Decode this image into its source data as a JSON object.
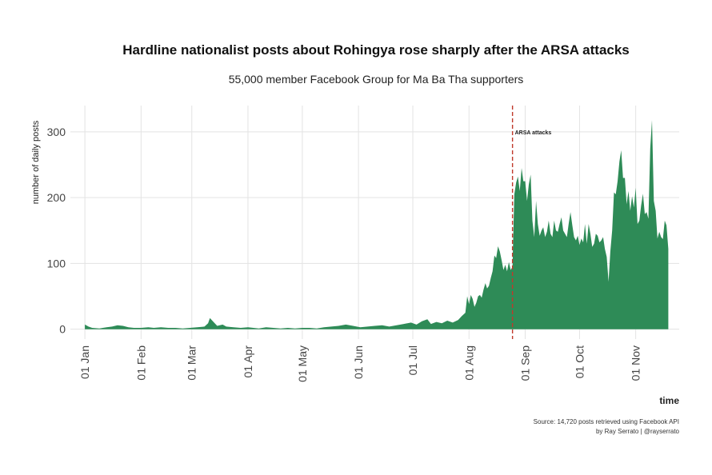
{
  "chart_data": {
    "type": "area",
    "title": "Hardline nationalist posts about Rohingya rose sharply after the ARSA attacks",
    "subtitle": "55,000 member Facebook Group for Ma Ba Tha supporters",
    "xlabel": "time",
    "ylabel": "number of daily posts",
    "ylim": [
      -15,
      340
    ],
    "y_ticks": [
      0,
      100,
      200,
      300
    ],
    "x_range_days": [
      -8,
      328
    ],
    "x_ticks": [
      {
        "label": "01 Jan",
        "day": 0
      },
      {
        "label": "01 Feb",
        "day": 31
      },
      {
        "label": "01 Mar",
        "day": 59
      },
      {
        "label": "01 Apr",
        "day": 90
      },
      {
        "label": "01 May",
        "day": 120
      },
      {
        "label": "01 Jun",
        "day": 151
      },
      {
        "label": "01 Jul",
        "day": 181
      },
      {
        "label": "01 Aug",
        "day": 212
      },
      {
        "label": "01 Sep",
        "day": 243
      },
      {
        "label": "01 Oct",
        "day": 273
      },
      {
        "label": "01 Nov",
        "day": 304
      }
    ],
    "grid": true,
    "fill_color": "#2e8b57",
    "annotation": {
      "label": "ARSA attacks",
      "day": 236,
      "color": "#c0392b"
    },
    "source": "Source: 14,720 posts retrieved using Facebook API",
    "credit": "by Ray Serrato | @rayserrato",
    "series": [
      {
        "name": "daily posts",
        "points": [
          [
            0,
            7
          ],
          [
            2,
            4
          ],
          [
            4,
            2
          ],
          [
            8,
            1
          ],
          [
            12,
            3
          ],
          [
            15,
            4
          ],
          [
            18,
            6
          ],
          [
            21,
            5
          ],
          [
            24,
            3
          ],
          [
            27,
            2
          ],
          [
            31,
            2
          ],
          [
            35,
            3
          ],
          [
            38,
            2
          ],
          [
            42,
            3
          ],
          [
            46,
            2
          ],
          [
            50,
            2
          ],
          [
            54,
            1
          ],
          [
            58,
            2
          ],
          [
            62,
            3
          ],
          [
            66,
            4
          ],
          [
            68,
            9
          ],
          [
            69,
            17
          ],
          [
            71,
            11
          ],
          [
            73,
            5
          ],
          [
            76,
            7
          ],
          [
            78,
            4
          ],
          [
            82,
            3
          ],
          [
            86,
            2
          ],
          [
            90,
            3
          ],
          [
            93,
            2
          ],
          [
            96,
            1
          ],
          [
            100,
            3
          ],
          [
            104,
            2
          ],
          [
            108,
            1
          ],
          [
            112,
            2
          ],
          [
            116,
            1
          ],
          [
            120,
            2
          ],
          [
            124,
            2
          ],
          [
            128,
            1
          ],
          [
            132,
            3
          ],
          [
            136,
            4
          ],
          [
            140,
            5
          ],
          [
            144,
            7
          ],
          [
            148,
            5
          ],
          [
            152,
            3
          ],
          [
            156,
            4
          ],
          [
            160,
            5
          ],
          [
            164,
            6
          ],
          [
            168,
            4
          ],
          [
            172,
            6
          ],
          [
            176,
            8
          ],
          [
            180,
            10
          ],
          [
            183,
            7
          ],
          [
            186,
            12
          ],
          [
            189,
            15
          ],
          [
            191,
            8
          ],
          [
            194,
            11
          ],
          [
            197,
            9
          ],
          [
            200,
            13
          ],
          [
            203,
            10
          ],
          [
            206,
            14
          ],
          [
            208,
            20
          ],
          [
            210,
            25
          ],
          [
            211,
            50
          ],
          [
            212,
            38
          ],
          [
            213,
            52
          ],
          [
            214,
            46
          ],
          [
            215,
            34
          ],
          [
            216,
            40
          ],
          [
            217,
            50
          ],
          [
            218,
            52
          ],
          [
            219,
            48
          ],
          [
            220,
            60
          ],
          [
            221,
            70
          ],
          [
            222,
            62
          ],
          [
            223,
            66
          ],
          [
            224,
            78
          ],
          [
            225,
            88
          ],
          [
            226,
            112
          ],
          [
            227,
            108
          ],
          [
            228,
            126
          ],
          [
            229,
            118
          ],
          [
            230,
            105
          ],
          [
            231,
            90
          ],
          [
            232,
            98
          ],
          [
            233,
            88
          ],
          [
            234,
            102
          ],
          [
            235,
            90
          ],
          [
            236,
            95
          ],
          [
            237,
            205
          ],
          [
            238,
            223
          ],
          [
            239,
            232
          ],
          [
            240,
            210
          ],
          [
            241,
            245
          ],
          [
            242,
            225
          ],
          [
            243,
            225
          ],
          [
            244,
            195
          ],
          [
            245,
            220
          ],
          [
            246,
            235
          ],
          [
            247,
            165
          ],
          [
            248,
            140
          ],
          [
            249,
            195
          ],
          [
            250,
            160
          ],
          [
            251,
            142
          ],
          [
            252,
            150
          ],
          [
            253,
            155
          ],
          [
            254,
            140
          ],
          [
            255,
            148
          ],
          [
            256,
            165
          ],
          [
            257,
            145
          ],
          [
            258,
            140
          ],
          [
            259,
            165
          ],
          [
            260,
            150
          ],
          [
            261,
            148
          ],
          [
            262,
            160
          ],
          [
            263,
            170
          ],
          [
            264,
            150
          ],
          [
            265,
            145
          ],
          [
            266,
            140
          ],
          [
            267,
            160
          ],
          [
            268,
            178
          ],
          [
            269,
            158
          ],
          [
            270,
            140
          ],
          [
            271,
            135
          ],
          [
            272,
            142
          ],
          [
            273,
            128
          ],
          [
            274,
            138
          ],
          [
            275,
            132
          ],
          [
            276,
            160
          ],
          [
            277,
            130
          ],
          [
            278,
            160
          ],
          [
            279,
            145
          ],
          [
            280,
            125
          ],
          [
            281,
            130
          ],
          [
            282,
            145
          ],
          [
            283,
            142
          ],
          [
            284,
            132
          ],
          [
            285,
            135
          ],
          [
            286,
            140
          ],
          [
            287,
            122
          ],
          [
            288,
            110
          ],
          [
            289,
            72
          ],
          [
            290,
            118
          ],
          [
            291,
            150
          ],
          [
            292,
            208
          ],
          [
            293,
            205
          ],
          [
            294,
            225
          ],
          [
            295,
            255
          ],
          [
            296,
            272
          ],
          [
            297,
            230
          ],
          [
            298,
            230
          ],
          [
            299,
            190
          ],
          [
            300,
            210
          ],
          [
            301,
            180
          ],
          [
            302,
            202
          ],
          [
            303,
            185
          ],
          [
            304,
            215
          ],
          [
            305,
            160
          ],
          [
            306,
            165
          ],
          [
            307,
            188
          ],
          [
            308,
            206
          ],
          [
            309,
            175
          ],
          [
            310,
            178
          ],
          [
            311,
            168
          ],
          [
            312,
            275
          ],
          [
            313,
            318
          ],
          [
            314,
            195
          ],
          [
            315,
            180
          ],
          [
            316,
            138
          ],
          [
            317,
            148
          ],
          [
            318,
            140
          ],
          [
            319,
            137
          ],
          [
            320,
            165
          ],
          [
            321,
            158
          ],
          [
            322,
            122
          ]
        ]
      }
    ]
  }
}
